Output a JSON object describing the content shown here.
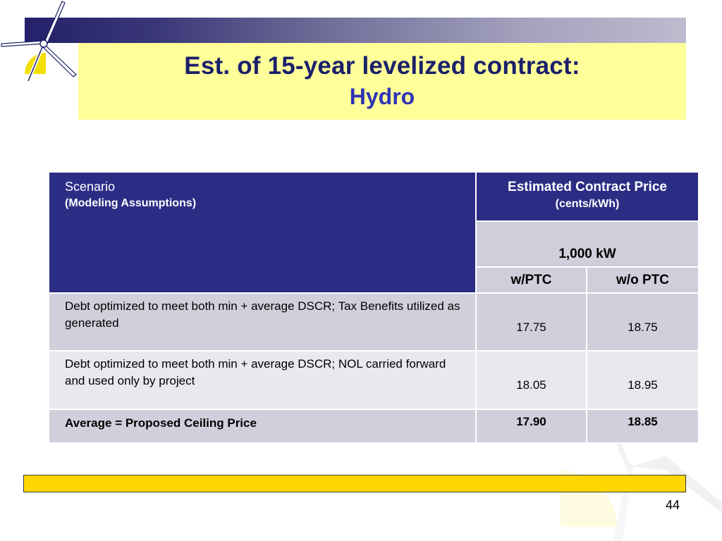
{
  "title": {
    "line1": "Est. of 15-year levelized contract:",
    "line2": "Hydro"
  },
  "table": {
    "header": {
      "scenario": "Scenario",
      "scenario_sub": "(Modeling Assumptions)",
      "price": "Estimated Contract Price",
      "price_sub": "(cents/kWh)",
      "capacity": "1,000 kW",
      "col_ptc": "w/PTC",
      "col_no_ptc": "w/o PTC"
    },
    "rows": [
      {
        "scenario": "Debt optimized to meet both min + average DSCR; Tax Benefits utilized as generated",
        "w_ptc": "17.75",
        "wo_ptc": "18.75"
      },
      {
        "scenario": "Debt optimized to meet both min + average DSCR; NOL carried forward and used only by project",
        "w_ptc": "18.05",
        "wo_ptc": "18.95"
      },
      {
        "scenario": "Average = Proposed Ceiling Price",
        "w_ptc": "17.90",
        "wo_ptc": "18.85"
      }
    ]
  },
  "page_number": "44",
  "colors": {
    "header_bg": "#2b2d85",
    "title_bg": "#ffff99",
    "title_text": "#1a1f6b",
    "subtitle_text": "#2f33b5",
    "footer_bar": "#ffd700"
  },
  "icons": {
    "logo": "wind-turbine-sun-icon",
    "watermark": "wind-turbine-watermark-icon"
  }
}
